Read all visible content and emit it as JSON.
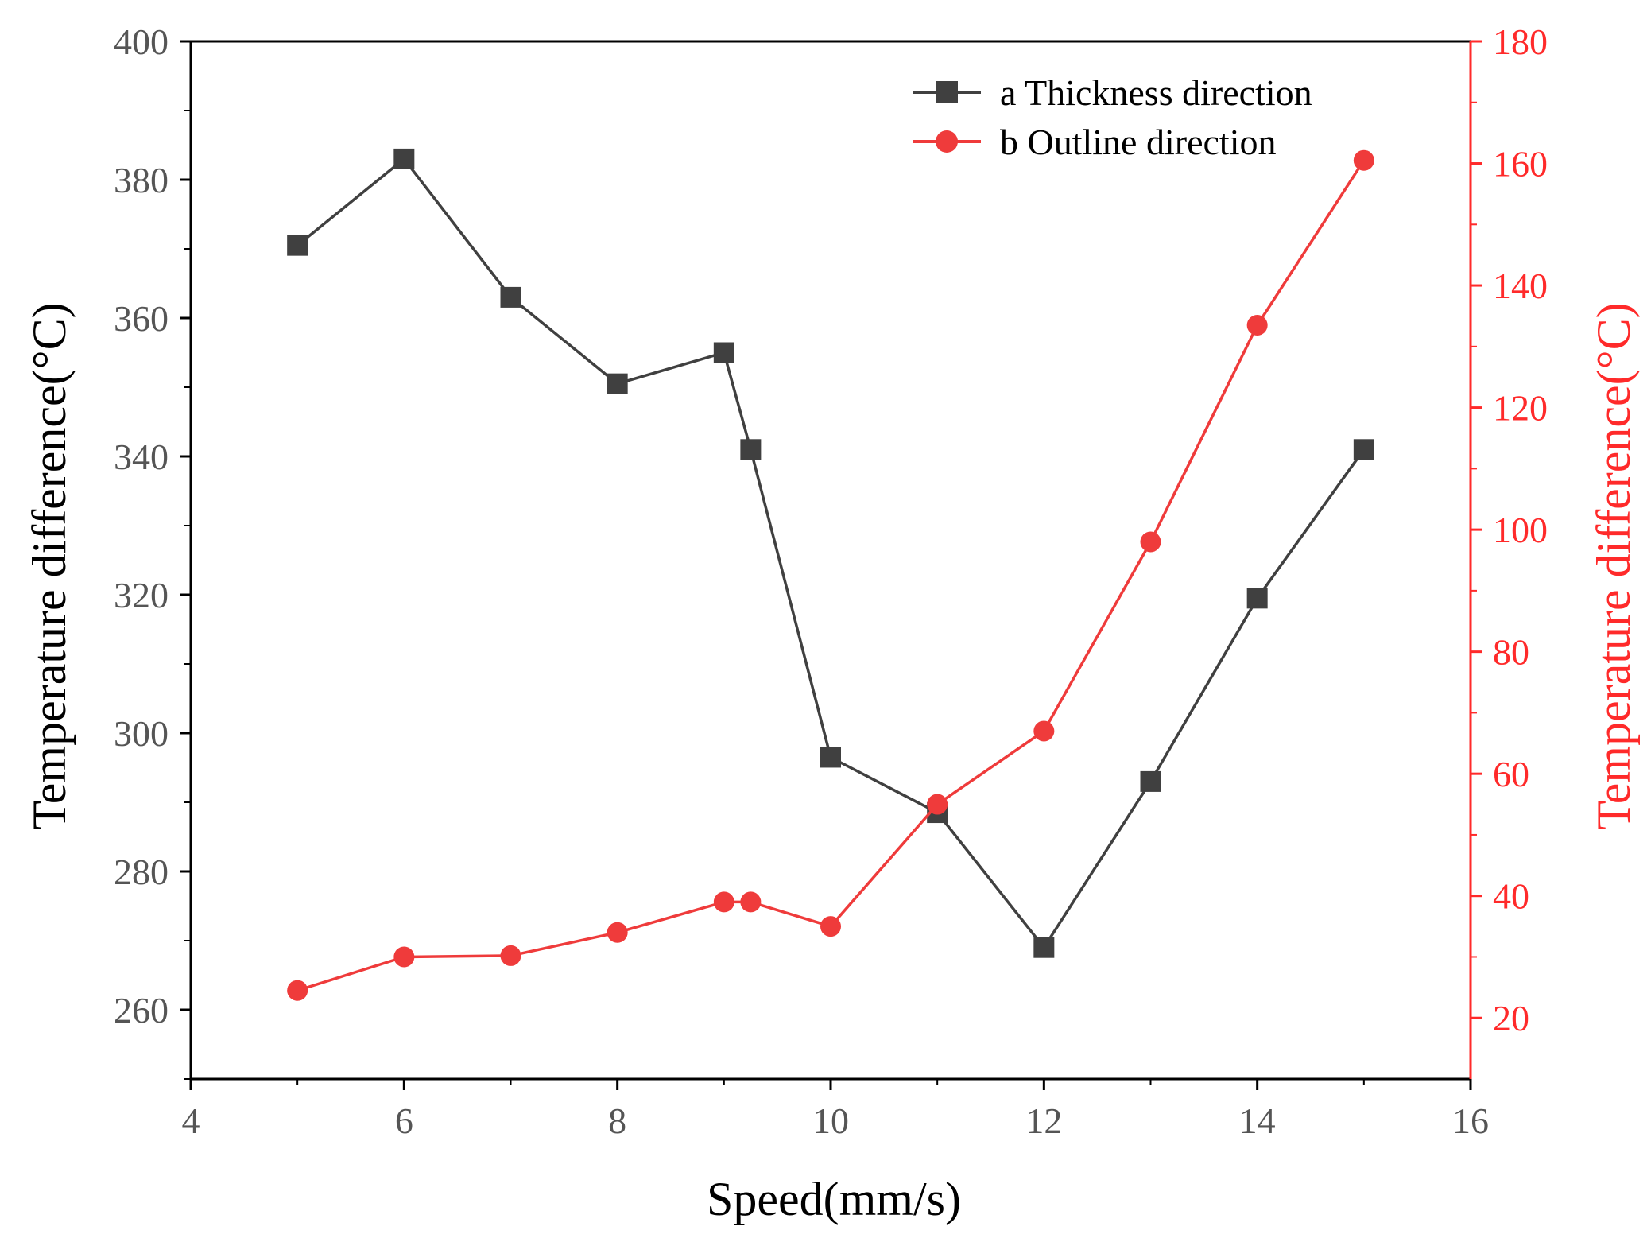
{
  "chart_data": {
    "type": "line",
    "xlabel": "Speed(mm/s)",
    "ylabel": "Temperature difference(°C)",
    "ylabel_right": "Temperature difference(°C)",
    "xlim": [
      4,
      16
    ],
    "ylim": [
      250,
      400
    ],
    "ylim_right": [
      10,
      180
    ],
    "x_ticks": [
      4,
      6,
      8,
      10,
      12,
      14,
      16
    ],
    "y_ticks": [
      260,
      280,
      300,
      320,
      340,
      360,
      380,
      400
    ],
    "y_ticks_right": [
      20,
      40,
      60,
      80,
      100,
      120,
      140,
      160,
      180
    ],
    "grid": false,
    "legend_position": "top-right",
    "series": [
      {
        "name": "a Thickness direction",
        "axis": "left",
        "color": "#404040",
        "marker": "square",
        "x": [
          5,
          6,
          7,
          8,
          9,
          9.25,
          10,
          11,
          12,
          13,
          14,
          15
        ],
        "y": [
          370.5,
          383,
          363,
          350.5,
          355,
          341,
          296.5,
          288.5,
          269,
          293,
          319.5,
          341
        ]
      },
      {
        "name": "b Outline direction",
        "axis": "right",
        "color": "#ef3b3b",
        "marker": "circle",
        "x": [
          5,
          6,
          7,
          8,
          9,
          9.25,
          10,
          11,
          12,
          13,
          14,
          15
        ],
        "y": [
          24.5,
          30,
          30.2,
          34,
          39,
          39,
          35,
          55,
          67,
          98,
          133.5,
          160.5
        ]
      }
    ]
  }
}
